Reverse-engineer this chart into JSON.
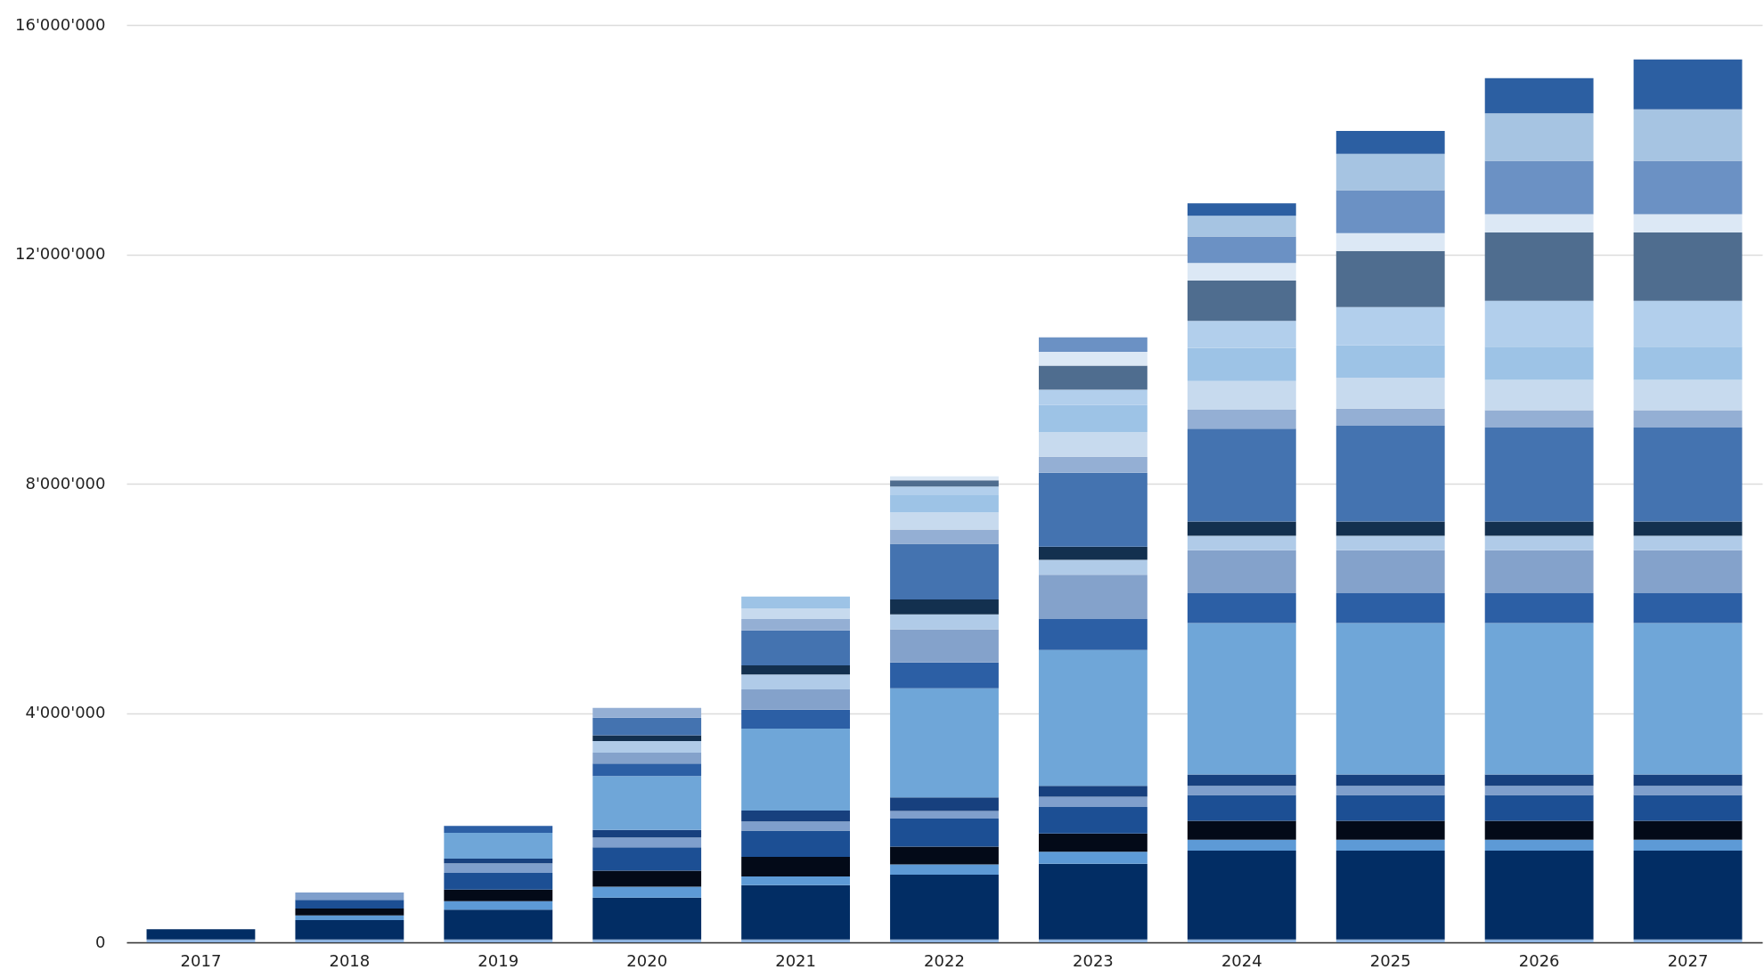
{
  "chart_data": {
    "type": "bar",
    "stacked": true,
    "grid": "y",
    "categories": [
      "2017",
      "2018",
      "2019",
      "2020",
      "2021",
      "2022",
      "2023",
      "2024",
      "2025",
      "2026",
      "2027"
    ],
    "ylim": [
      0,
      16000000
    ],
    "yticks": [
      0,
      {
        "value": 4000000,
        "label": "4'000'000"
      },
      {
        "value": 8000000,
        "label": "8'000'000"
      },
      {
        "value": 12000000,
        "label": "12'000'000"
      },
      {
        "value": 16000000,
        "label": "16'000'000"
      }
    ],
    "series": [
      {
        "color": "#8db3e0",
        "values": [
          50000,
          50000,
          50000,
          50000,
          50000,
          50000,
          50000,
          50000,
          50000,
          50000,
          50000
        ]
      },
      {
        "color": "#022d64",
        "values": [
          180000,
          340000,
          520000,
          730000,
          950000,
          1130000,
          1320000,
          1550000,
          1550000,
          1550000,
          1550000
        ]
      },
      {
        "color": "#5d9ad6",
        "values": [
          null,
          80000,
          150000,
          190000,
          150000,
          180000,
          210000,
          190000,
          190000,
          190000,
          190000
        ]
      },
      {
        "color": "#030a18",
        "values": [
          null,
          120000,
          200000,
          280000,
          340000,
          310000,
          320000,
          330000,
          330000,
          330000,
          330000
        ]
      },
      {
        "color": "#1c4f94",
        "values": [
          null,
          150000,
          290000,
          410000,
          460000,
          490000,
          460000,
          450000,
          450000,
          450000,
          450000
        ]
      },
      {
        "color": "#7f9fcc",
        "values": [
          null,
          130000,
          170000,
          170000,
          160000,
          130000,
          180000,
          160000,
          160000,
          160000,
          160000
        ]
      },
      {
        "color": "#17407e",
        "values": [
          null,
          null,
          80000,
          130000,
          190000,
          240000,
          190000,
          200000,
          200000,
          200000,
          200000
        ]
      },
      {
        "color": "#6fa6d8",
        "values": [
          null,
          null,
          450000,
          940000,
          1430000,
          1900000,
          2370000,
          2640000,
          2640000,
          2640000,
          2640000
        ]
      },
      {
        "color": "#2c5fa5",
        "values": [
          null,
          null,
          120000,
          220000,
          330000,
          450000,
          540000,
          520000,
          520000,
          520000,
          520000
        ]
      },
      {
        "color": "#84a2cb",
        "values": [
          null,
          null,
          null,
          190000,
          350000,
          580000,
          770000,
          750000,
          750000,
          750000,
          750000
        ]
      },
      {
        "color": "#b0cbe8",
        "values": [
          null,
          null,
          null,
          200000,
          260000,
          260000,
          260000,
          250000,
          250000,
          250000,
          250000
        ]
      },
      {
        "color": "#13304f",
        "values": [
          null,
          null,
          null,
          100000,
          160000,
          260000,
          230000,
          250000,
          250000,
          250000,
          250000
        ]
      },
      {
        "color": "#4473b0",
        "values": [
          null,
          null,
          null,
          310000,
          610000,
          970000,
          1290000,
          1620000,
          1670000,
          1640000,
          1640000
        ]
      },
      {
        "color": "#94afd4",
        "values": [
          null,
          null,
          null,
          170000,
          200000,
          250000,
          280000,
          330000,
          300000,
          300000,
          300000
        ]
      },
      {
        "color": "#c7daee",
        "values": [
          null,
          null,
          null,
          null,
          180000,
          300000,
          430000,
          500000,
          540000,
          530000,
          530000
        ]
      },
      {
        "color": "#9dc3e6",
        "values": [
          null,
          null,
          null,
          null,
          210000,
          300000,
          470000,
          580000,
          560000,
          580000,
          580000
        ]
      },
      {
        "color": "#b2cfec",
        "values": [
          null,
          null,
          null,
          null,
          null,
          150000,
          270000,
          470000,
          670000,
          800000,
          800000
        ]
      },
      {
        "color": "#4f6d8f",
        "values": [
          null,
          null,
          null,
          null,
          null,
          110000,
          420000,
          700000,
          980000,
          1190000,
          1190000
        ]
      },
      {
        "color": "#dce8f5",
        "values": [
          null,
          null,
          null,
          null,
          null,
          70000,
          240000,
          310000,
          310000,
          320000,
          320000
        ]
      },
      {
        "color": "#6b91c4",
        "values": [
          null,
          null,
          null,
          null,
          null,
          null,
          250000,
          460000,
          750000,
          930000,
          930000
        ]
      },
      {
        "color": "#a6c4e2",
        "values": [
          null,
          null,
          null,
          null,
          null,
          null,
          null,
          360000,
          630000,
          830000,
          900000
        ]
      },
      {
        "color": "#2c5fa2",
        "values": [
          null,
          null,
          null,
          null,
          null,
          null,
          null,
          220000,
          400000,
          610000,
          870000
        ]
      }
    ]
  }
}
